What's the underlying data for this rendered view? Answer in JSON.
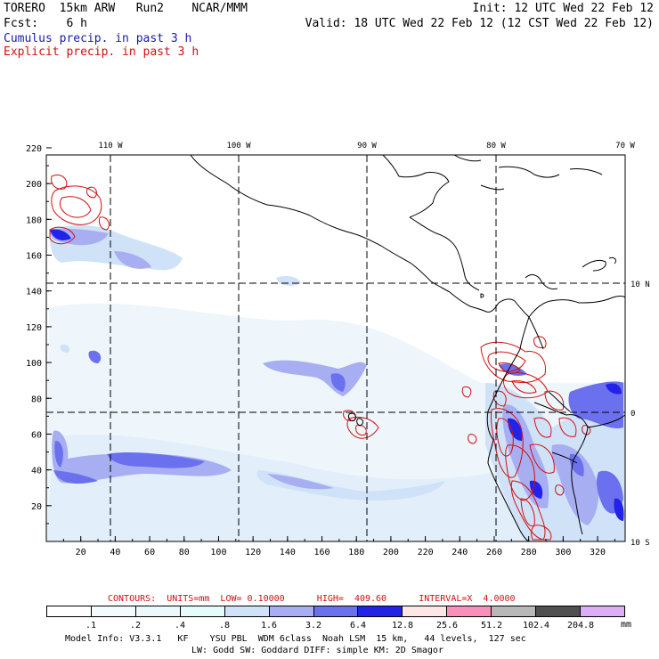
{
  "header": {
    "model": "TORERO  15km ARW   Run2    NCAR/MMM",
    "init": "Init: 12 UTC Wed 22 Feb 12",
    "fcst": "Fcst:    6 h",
    "valid": "Valid: 18 UTC Wed 22 Feb 12 (12 CST Wed 22 Feb 12)",
    "legend_cumulus": "Cumulus precip. in past 3 h",
    "legend_explicit": "Explicit precip. in past 3 h"
  },
  "map": {
    "top_lon_labels": [
      "110 W",
      "100 W",
      "90 W",
      "80 W",
      "70 W"
    ],
    "right_lat_labels": [
      "10 N",
      "0",
      "10 S"
    ],
    "left_ticks": [
      "220",
      "200",
      "180",
      "160",
      "140",
      "120",
      "100",
      "80",
      "60",
      "40",
      "20"
    ],
    "bottom_ticks": [
      "20",
      "40",
      "60",
      "80",
      "100",
      "120",
      "140",
      "160",
      "180",
      "200",
      "220",
      "240",
      "260",
      "280",
      "300",
      "320"
    ],
    "colors": {
      "coast": "#000000",
      "grid": "#000000",
      "contour": "#d01010"
    }
  },
  "contours_line": "CONTOURS:  UNITS=mm  LOW= 0.10000      HIGH=  409.60      INTERVAL=X  4.0000",
  "colorbar": {
    "labels": [
      ".1",
      ".2",
      ".4",
      ".8",
      "1.6",
      "3.2",
      "6.4",
      "12.8",
      "25.6",
      "51.2",
      "102.4",
      "204.8"
    ],
    "units": "mm",
    "colors": [
      "#ffffff",
      "#f4fbff",
      "#ecf8fb",
      "#e6fcfc",
      "#cfe2f8",
      "#a8aef2",
      "#6b70ee",
      "#2222e8",
      "#fde6e6",
      "#f890bc",
      "#b8b8b8",
      "#505050",
      "#dcaef5"
    ]
  },
  "footer": {
    "line1": "Model Info: V3.3.1   KF    YSU PBL  WDM 6class  Noah LSM  15 km,   44 levels,  127 sec",
    "line2": "LW: Godd SW: Goddard DIFF: simple KM: 2D Smagor"
  }
}
